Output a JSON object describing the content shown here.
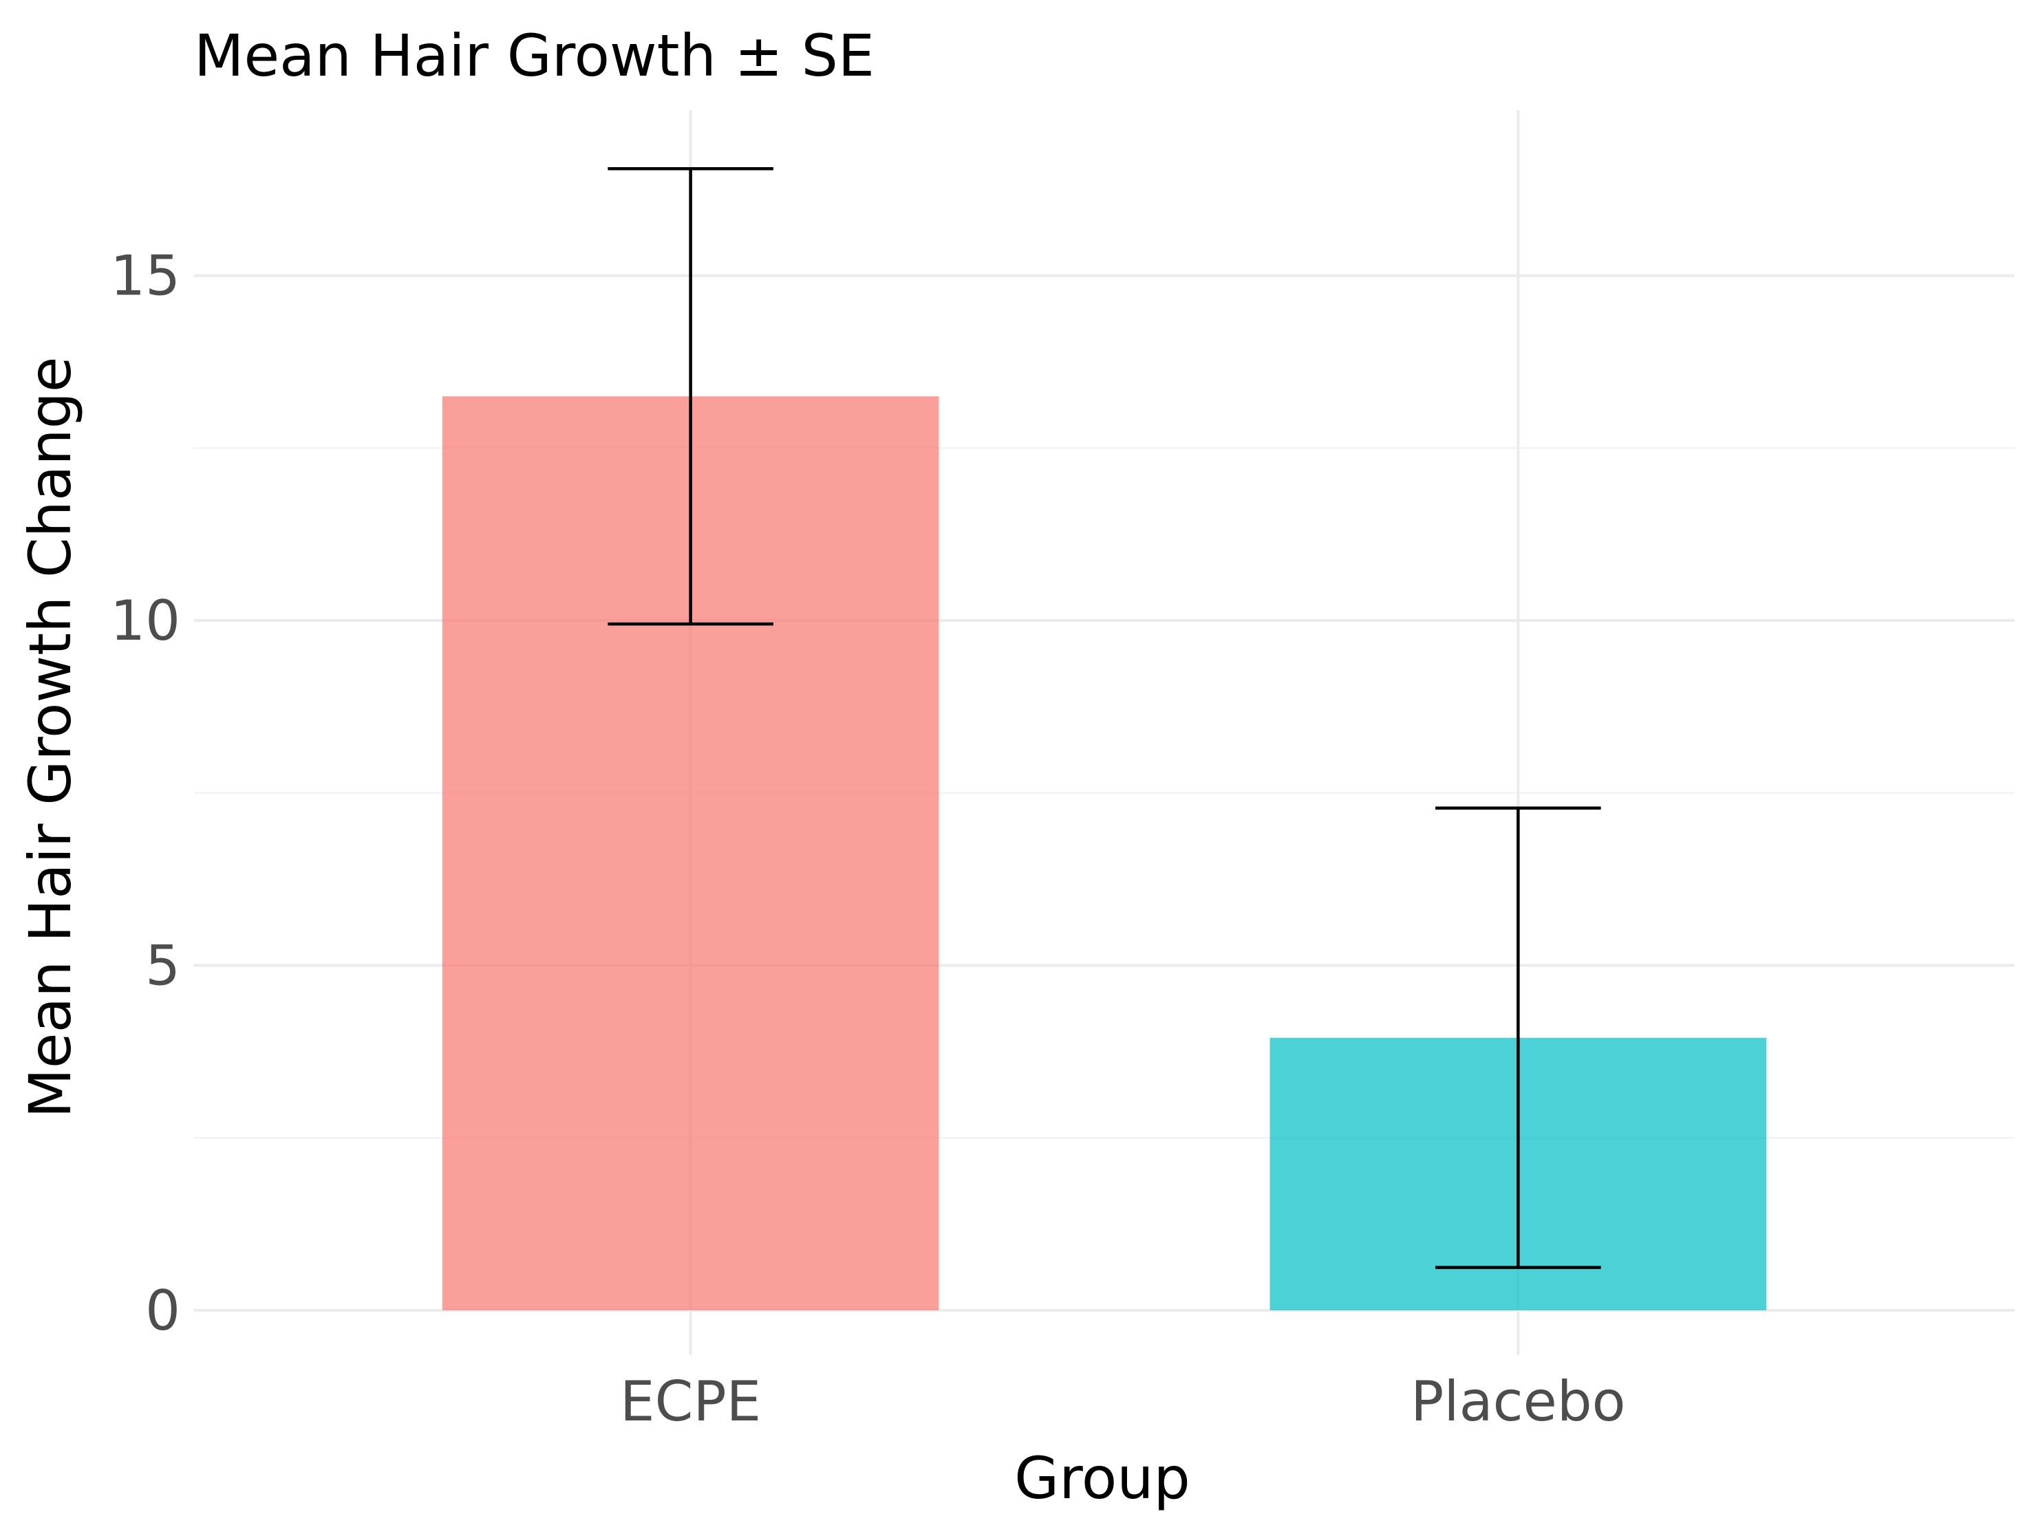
{
  "chart_data": {
    "type": "bar",
    "title": "Mean Hair Growth ± SE",
    "xlabel": "Group",
    "ylabel": "Mean Hair Growth Change",
    "categories": [
      "ECPE",
      "Placebo"
    ],
    "values": [
      13.25,
      3.95
    ],
    "error_low": [
      9.95,
      0.62
    ],
    "error_high": [
      16.55,
      7.28
    ],
    "colors": [
      "#F8766D",
      "#00BFC4"
    ],
    "bar_opacity": 0.7,
    "yticks": [
      0,
      5,
      10,
      15
    ],
    "ytick_labels": [
      "0",
      "5",
      "10",
      "15"
    ],
    "ylim": [
      -0.65,
      17.4
    ],
    "grid": true,
    "legend": "none"
  }
}
